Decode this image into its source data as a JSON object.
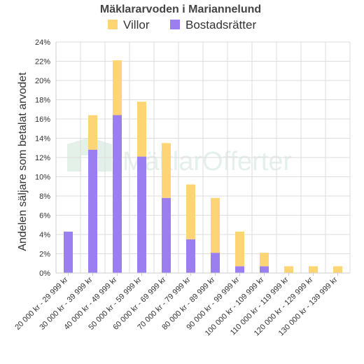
{
  "chart_data": {
    "type": "bar",
    "stacked": true,
    "title": "Mäklararvoden i Mariannelund",
    "ylabel": "Andelen säljare som betalat arvodet",
    "xlabel": "",
    "categories": [
      "20 000 kr - 29 999 kr",
      "30 000 kr - 39 999 kr",
      "40 000 kr - 49 999 kr",
      "50 000 kr - 59 999 kr",
      "60 000 kr - 69 999 kr",
      "70 000 kr - 79 999 kr",
      "80 000 kr - 89 999 kr",
      "90 000 kr - 99 999 kr",
      "100 000 kr - 109 999 kr",
      "110 000 kr - 119 999 kr",
      "120 000 kr - 129 999 kr",
      "130 000 kr - 139 999 kr"
    ],
    "series": [
      {
        "name": "Bostadsrätter",
        "color": "#9b7ff0",
        "values": [
          4.3,
          12.8,
          16.4,
          12.1,
          7.8,
          3.5,
          2.1,
          0.7,
          0.7,
          0,
          0,
          0
        ]
      },
      {
        "name": "Villor",
        "color": "#fdd575",
        "values": [
          0,
          3.6,
          5.7,
          5.7,
          5.7,
          5.7,
          5.7,
          3.6,
          1.4,
          0.7,
          0.7,
          0.7
        ]
      }
    ],
    "legend_order": [
      "Villor",
      "Bostadsrätter"
    ],
    "ylim": [
      0,
      24
    ],
    "yticks": [
      "0%",
      "2%",
      "4%",
      "6%",
      "8%",
      "10%",
      "12%",
      "14%",
      "16%",
      "18%",
      "20%",
      "22%",
      "24%"
    ],
    "grid": true,
    "legend_position": "top-center"
  },
  "watermark": {
    "text": "MäklarOfferter"
  }
}
